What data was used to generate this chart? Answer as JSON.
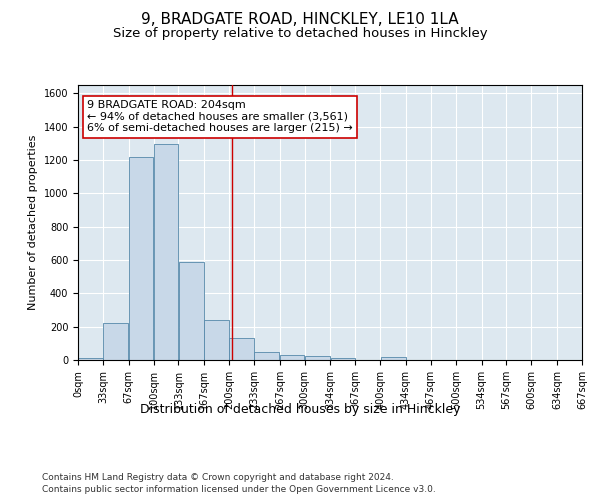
{
  "title1": "9, BRADGATE ROAD, HINCKLEY, LE10 1LA",
  "title2": "Size of property relative to detached houses in Hinckley",
  "xlabel": "Distribution of detached houses by size in Hinckley",
  "ylabel": "Number of detached properties",
  "footnote1": "Contains HM Land Registry data © Crown copyright and database right 2024.",
  "footnote2": "Contains public sector information licensed under the Open Government Licence v3.0.",
  "bar_edges": [
    0,
    33,
    67,
    100,
    133,
    167,
    200,
    233,
    267,
    300,
    334,
    367,
    400,
    434,
    467,
    500,
    534,
    567,
    600,
    634,
    667
  ],
  "bar_heights": [
    10,
    220,
    1220,
    1295,
    590,
    243,
    135,
    50,
    30,
    25,
    15,
    0,
    17,
    0,
    0,
    0,
    0,
    0,
    0,
    0
  ],
  "bar_color": "#c8d8e8",
  "bar_edgecolor": "#5588aa",
  "vline_x": 204,
  "vline_color": "#cc0000",
  "annotation_line1": "9 BRADGATE ROAD: 204sqm",
  "annotation_line2": "← 94% of detached houses are smaller (3,561)",
  "annotation_line3": "6% of semi-detached houses are larger (215) →",
  "annotation_box_color": "#cc0000",
  "ylim": [
    0,
    1650
  ],
  "xlim": [
    0,
    667
  ],
  "bg_color": "#dde8f0",
  "grid_color": "#ffffff",
  "title1_fontsize": 11,
  "title2_fontsize": 9.5,
  "xlabel_fontsize": 9,
  "ylabel_fontsize": 8,
  "tick_fontsize": 7,
  "footnote_fontsize": 6.5,
  "annotation_fontsize": 8
}
